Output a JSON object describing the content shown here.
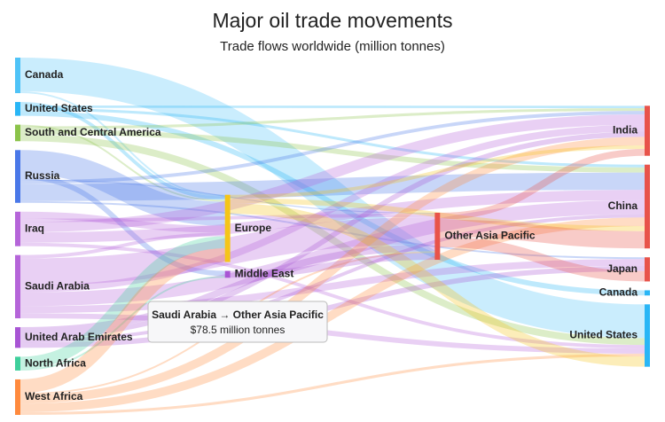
{
  "chart_data": {
    "type": "sankey",
    "title": "Major oil trade movements",
    "subtitle": "Trade flows worldwide (million tonnes)",
    "columns": [
      [
        {
          "name": "Canada",
          "color": "#4fc3f7",
          "flows": [
            {
              "to": "United States",
              "value": 98
            },
            {
              "to": "Europe",
              "value": 5
            }
          ]
        },
        {
          "name": "United States",
          "color": "#29b6f6",
          "flows": [
            {
              "to": "Europe",
              "value": 10
            },
            {
              "to": "India",
              "value": 7
            },
            {
              "to": "China",
              "value": 8
            },
            {
              "to": "Canada",
              "value": 15
            }
          ]
        },
        {
          "name": "South and Central America",
          "color": "#8bc34a",
          "flows": [
            {
              "to": "Europe",
              "value": 5
            },
            {
              "to": "India",
              "value": 8
            },
            {
              "to": "China",
              "value": 15
            },
            {
              "to": "United States",
              "value": 20
            }
          ]
        },
        {
          "name": "Russia",
          "color": "#4a78e8",
          "flows": [
            {
              "to": "Europe",
              "value": 70
            },
            {
              "to": "Middle East",
              "value": 15
            },
            {
              "to": "Other Asia Pacific",
              "value": 3
            },
            {
              "to": "India",
              "value": 10
            },
            {
              "to": "China",
              "value": 50
            },
            {
              "to": "Japan",
              "value": 5
            }
          ]
        },
        {
          "name": "Iraq",
          "color": "#b565d9",
          "flows": [
            {
              "to": "Europe",
              "value": 20
            },
            {
              "to": "Other Asia Pacific",
              "value": 10
            },
            {
              "to": "India",
              "value": 30
            },
            {
              "to": "China",
              "value": 30
            },
            {
              "to": "United States",
              "value": 10
            }
          ]
        },
        {
          "name": "Saudi Arabia",
          "color": "#b565d9",
          "flows": [
            {
              "to": "Europe",
              "value": 10
            },
            {
              "to": "Other Asia Pacific",
              "value": 78.5
            },
            {
              "to": "India",
              "value": 20
            },
            {
              "to": "China",
              "value": 40
            },
            {
              "to": "Japan",
              "value": 20
            },
            {
              "to": "United States",
              "value": 15
            }
          ]
        },
        {
          "name": "United Arab Emirates",
          "color": "#a855d4",
          "flows": [
            {
              "to": "Other Asia Pacific",
              "value": 20
            },
            {
              "to": "India",
              "value": 15
            },
            {
              "to": "China",
              "value": 10
            },
            {
              "to": "Japan",
              "value": 15
            }
          ]
        },
        {
          "name": "North Africa",
          "color": "#3ecf9b",
          "flows": [
            {
              "to": "Europe",
              "value": 35
            },
            {
              "to": "Middle East",
              "value": 5
            }
          ]
        },
        {
          "name": "West Africa",
          "color": "#ff8a3d",
          "flows": [
            {
              "to": "Europe",
              "value": 40
            },
            {
              "to": "Other Asia Pacific",
              "value": 5
            },
            {
              "to": "India",
              "value": 25
            },
            {
              "to": "China",
              "value": 25
            },
            {
              "to": "United States",
              "value": 8
            }
          ]
        }
      ],
      [
        {
          "name": "Europe",
          "color": "#f5c518",
          "flows": [
            {
              "to": "India",
              "value": 10
            },
            {
              "to": "China",
              "value": 15
            },
            {
              "to": "United States",
              "value": 30
            }
          ]
        },
        {
          "name": "Middle East",
          "color": "#a855d4",
          "flows": [
            {
              "to": "Other Asia Pacific",
              "value": 20
            }
          ]
        }
      ],
      [
        {
          "name": "Other Asia Pacific",
          "color": "#e8534a",
          "flows": [
            {
              "to": "India",
              "value": 20
            },
            {
              "to": "China",
              "value": 50
            },
            {
              "to": "Japan",
              "value": 30
            }
          ]
        }
      ],
      [
        {
          "name": "India",
          "color": "#e8534a",
          "flows": []
        },
        {
          "name": "China",
          "color": "#e8534a",
          "flows": []
        },
        {
          "name": "Japan",
          "color": "#e8534a",
          "flows": []
        },
        {
          "name": "Canada",
          "color": "#29b6f6",
          "flows": []
        },
        {
          "name": "United States",
          "color": "#29b6f6",
          "flows": []
        }
      ]
    ],
    "tooltip": {
      "title": "Saudi Arabia → Other Asia Pacific",
      "text": "$78.5 million tonnes"
    }
  }
}
